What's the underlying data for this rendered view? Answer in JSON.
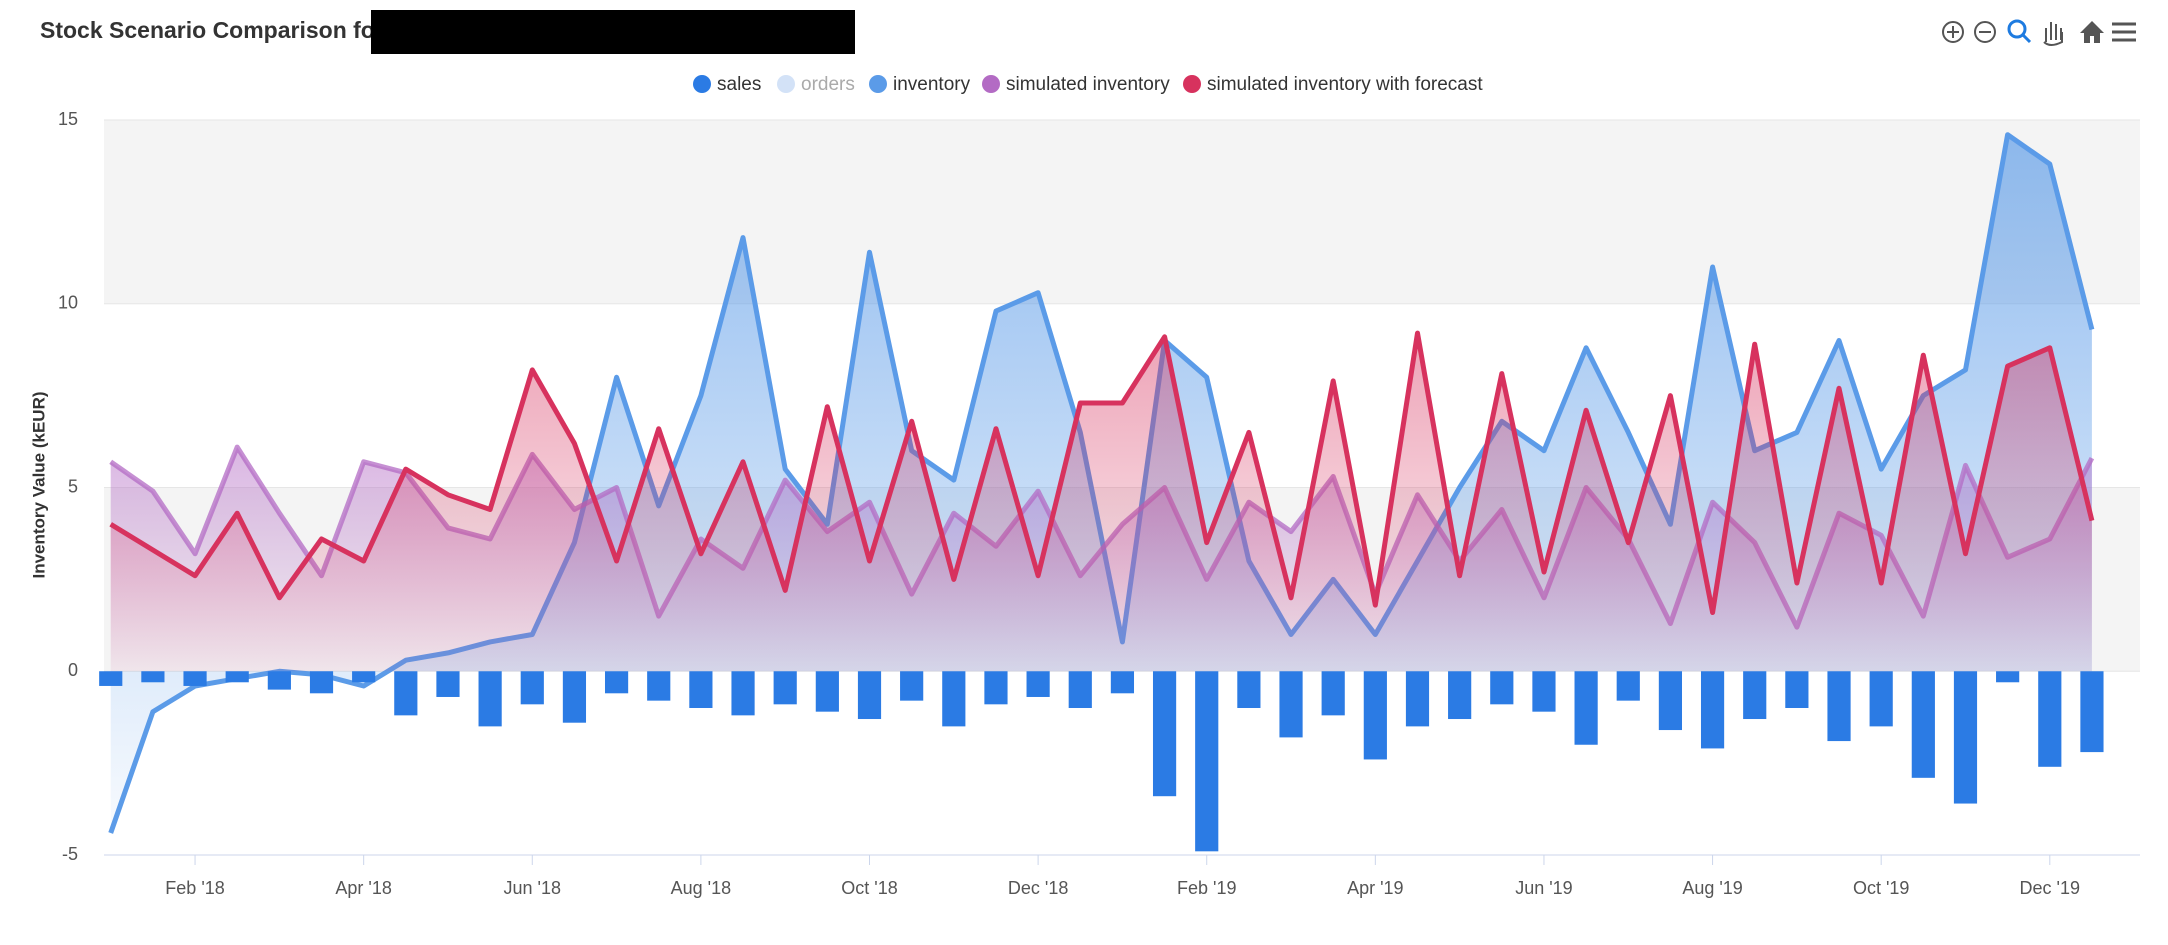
{
  "chart_data": {
    "type": "area",
    "title": "Stock Scenario Comparison for",
    "y_label": "Inventory Value (kEUR)",
    "ylim": [
      -5,
      15
    ],
    "yticks": [
      -5,
      0,
      5,
      10,
      15
    ],
    "xlim": [
      0.92,
      25.07
    ],
    "xticks": [
      {
        "value": 2,
        "label": "Feb '18"
      },
      {
        "value": 4,
        "label": "Apr '18"
      },
      {
        "value": 6,
        "label": "Jun '18"
      },
      {
        "value": 8,
        "label": "Aug '18"
      },
      {
        "value": 10,
        "label": "Oct '18"
      },
      {
        "value": 12,
        "label": "Dec '18"
      },
      {
        "value": 14,
        "label": "Feb '19"
      },
      {
        "value": 16,
        "label": "Apr '19"
      },
      {
        "value": 18,
        "label": "Jun '19"
      },
      {
        "value": 20,
        "label": "Aug '19"
      },
      {
        "value": 22,
        "label": "Oct '19"
      },
      {
        "value": 24,
        "label": "Dec '19"
      }
    ],
    "alternate_grid": true,
    "x": [
      1.0,
      1.5,
      2.0,
      2.5,
      3.0,
      3.5,
      4.0,
      4.5,
      5.0,
      5.5,
      6.0,
      6.5,
      7.0,
      7.5,
      8.0,
      8.5,
      9.0,
      9.5,
      10.0,
      10.5,
      11.0,
      11.5,
      12.0,
      12.5,
      13.0,
      13.5,
      14.0,
      14.5,
      15.0,
      15.5,
      16.0,
      16.5,
      17.0,
      17.5,
      18.0,
      18.5,
      19.0,
      19.5,
      20.0,
      20.5,
      21.0,
      21.5,
      22.0,
      22.5,
      23.0,
      23.5,
      24.0,
      24.5
    ],
    "series": [
      {
        "name": "sales",
        "type": "column",
        "color": "#2b7be4",
        "values": [
          -0.4,
          -0.3,
          -0.4,
          -0.3,
          -0.5,
          -0.6,
          -0.3,
          -1.2,
          -0.7,
          -1.5,
          -0.9,
          -1.4,
          -0.6,
          -0.8,
          -1.0,
          -1.2,
          -0.9,
          -1.1,
          -1.3,
          -0.8,
          -1.5,
          -0.9,
          -0.7,
          -1.0,
          -0.6,
          -3.4,
          -4.9,
          -1.0,
          -1.8,
          -1.2,
          -2.4,
          -1.5,
          -1.3,
          -0.9,
          -1.1,
          -2.0,
          -0.8,
          -1.6,
          -2.1,
          -1.3,
          -1.0,
          -1.9,
          -1.5,
          -2.9,
          -3.6,
          -0.3,
          -2.6,
          -2.2
        ]
      },
      {
        "name": "orders",
        "type": "area",
        "color": "#d3e2f7",
        "hidden": true
      },
      {
        "name": "inventory",
        "type": "area",
        "color": "#5b9be8",
        "values": [
          -4.4,
          -1.1,
          -0.4,
          -0.2,
          0,
          -0.1,
          -0.4,
          0.3,
          0.5,
          0.8,
          1.0,
          3.5,
          8.0,
          4.5,
          7.5,
          11.8,
          5.5,
          4.0,
          11.4,
          6.0,
          5.2,
          9.8,
          10.3,
          6.5,
          0.8,
          9.0,
          8.0,
          3.0,
          1.0,
          2.5,
          1.0,
          3.0,
          5.0,
          6.8,
          6.0,
          8.8,
          6.5,
          4.0,
          11.0,
          6.0,
          6.5,
          9.0,
          5.5,
          7.5,
          8.2,
          14.6,
          13.8,
          9.3
        ]
      },
      {
        "name": "simulated inventory",
        "type": "area",
        "color": "#b36bc4",
        "values": [
          5.7,
          4.9,
          3.2,
          6.1,
          4.3,
          2.6,
          5.7,
          5.4,
          3.9,
          3.6,
          5.9,
          4.4,
          5.0,
          1.5,
          3.6,
          2.8,
          5.2,
          3.8,
          4.6,
          2.1,
          4.3,
          3.4,
          4.9,
          2.6,
          4.0,
          5.0,
          2.5,
          4.6,
          3.8,
          5.3,
          2.1,
          4.8,
          3.0,
          4.4,
          2.0,
          5.0,
          3.6,
          1.3,
          4.6,
          3.5,
          1.2,
          4.3,
          3.7,
          1.5,
          5.6,
          3.1,
          3.6,
          5.8
        ]
      },
      {
        "name": "simulated inventory with forecast",
        "type": "area",
        "color": "#d7325e",
        "values": [
          4.0,
          3.3,
          2.6,
          4.3,
          2.0,
          3.6,
          3.0,
          5.5,
          4.8,
          4.4,
          8.2,
          6.2,
          3.0,
          6.6,
          3.2,
          5.7,
          2.2,
          7.2,
          3.0,
          6.8,
          2.5,
          6.6,
          2.6,
          7.3,
          7.3,
          9.1,
          3.5,
          6.5,
          2.0,
          7.9,
          1.8,
          9.2,
          2.6,
          8.1,
          2.7,
          7.1,
          3.5,
          7.5,
          1.6,
          8.9,
          2.4,
          7.7,
          2.4,
          8.6,
          3.2,
          8.3,
          8.8,
          4.1
        ]
      }
    ]
  }
}
